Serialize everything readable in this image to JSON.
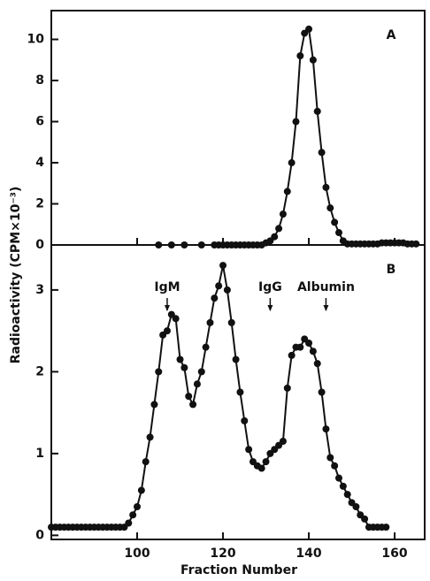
{
  "chart_data": [
    {
      "type": "line",
      "panel_label": "A",
      "ylabel": "Radioactivity (CPM×10⁻³)",
      "color": "#111111",
      "x": [
        105,
        108,
        111,
        115,
        118,
        119,
        120,
        121,
        122,
        123,
        124,
        125,
        126,
        127,
        128,
        129,
        130,
        131,
        132,
        133,
        134,
        135,
        136,
        137,
        138,
        139,
        140,
        141,
        142,
        143,
        144,
        145,
        146,
        147,
        148,
        149,
        150,
        151,
        152,
        153,
        154,
        155,
        156,
        157,
        158,
        159,
        160,
        161,
        162,
        163,
        164,
        165
      ],
      "values": [
        0,
        0,
        0,
        0,
        0,
        0,
        0,
        0,
        0,
        0,
        0,
        0,
        0,
        0,
        0,
        0,
        0.1,
        0.2,
        0.4,
        0.8,
        1.5,
        2.6,
        4.0,
        6.0,
        9.2,
        10.3,
        10.5,
        9.0,
        6.5,
        4.5,
        2.8,
        1.8,
        1.1,
        0.6,
        0.2,
        0.05,
        0.05,
        0.05,
        0.05,
        0.05,
        0.05,
        0.05,
        0.05,
        0.1,
        0.1,
        0.1,
        0.1,
        0.1,
        0.1,
        0.05,
        0.05,
        0.05
      ],
      "xlim": [
        80,
        167
      ],
      "ylim": [
        0,
        11.4
      ],
      "yticks": [
        0,
        2,
        4,
        6,
        8,
        10
      ]
    },
    {
      "type": "line",
      "panel_label": "B",
      "xlabel": "Fraction Number",
      "color": "#111111",
      "x": [
        80,
        81,
        82,
        83,
        84,
        85,
        86,
        87,
        88,
        89,
        90,
        91,
        92,
        93,
        94,
        95,
        96,
        97,
        98,
        99,
        100,
        101,
        102,
        103,
        104,
        105,
        106,
        107,
        108,
        109,
        110,
        111,
        112,
        113,
        114,
        115,
        116,
        117,
        118,
        119,
        120,
        121,
        122,
        123,
        124,
        125,
        126,
        127,
        128,
        129,
        130,
        131,
        132,
        133,
        134,
        135,
        136,
        137,
        138,
        139,
        140,
        141,
        142,
        143,
        144,
        145,
        146,
        147,
        148,
        149,
        150,
        151,
        152,
        153,
        154,
        155,
        156,
        157,
        158
      ],
      "values": [
        0.1,
        0.1,
        0.1,
        0.1,
        0.1,
        0.1,
        0.1,
        0.1,
        0.1,
        0.1,
        0.1,
        0.1,
        0.1,
        0.1,
        0.1,
        0.1,
        0.1,
        0.1,
        0.15,
        0.25,
        0.35,
        0.55,
        0.9,
        1.2,
        1.6,
        2.0,
        2.45,
        2.5,
        2.7,
        2.65,
        2.15,
        2.05,
        1.7,
        1.6,
        1.85,
        2.0,
        2.3,
        2.6,
        2.9,
        3.05,
        3.3,
        3.0,
        2.6,
        2.15,
        1.75,
        1.4,
        1.05,
        0.9,
        0.85,
        0.82,
        0.9,
        1.0,
        1.05,
        1.1,
        1.15,
        1.8,
        2.2,
        2.3,
        2.3,
        2.4,
        2.35,
        2.25,
        2.1,
        1.75,
        1.3,
        0.95,
        0.85,
        0.7,
        0.6,
        0.5,
        0.4,
        0.35,
        0.25,
        0.2,
        0.1,
        0.1,
        0.1,
        0.1,
        0.1
      ],
      "xlim": [
        80,
        167
      ],
      "ylim": [
        -0.05,
        3.55
      ],
      "yticks": [
        0,
        1,
        2,
        3
      ],
      "xticks": [
        100,
        120,
        140,
        160
      ],
      "annotations": [
        {
          "text": "IgM",
          "x": 107
        },
        {
          "text": "IgG",
          "x": 131
        },
        {
          "text": "Albumin",
          "x": 144
        }
      ]
    }
  ]
}
